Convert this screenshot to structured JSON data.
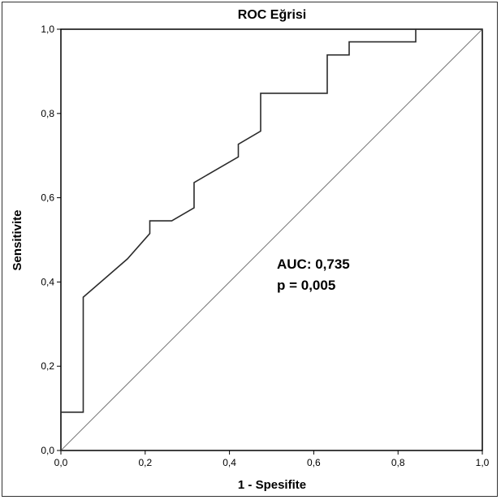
{
  "chart_data": {
    "type": "line",
    "title": "ROC Eğrisi",
    "xlabel": "1 - Spesifite",
    "ylabel": "Sensitivite",
    "xlim": [
      0,
      1
    ],
    "ylim": [
      0,
      1
    ],
    "xticks": [
      "0,0",
      "0,2",
      "0,4",
      "0,6",
      "0,8",
      "1,0"
    ],
    "yticks": [
      "0,0",
      "0,2",
      "0,4",
      "0,6",
      "0,8",
      "1,0"
    ],
    "grid": false,
    "series": [
      {
        "x": [
          0.0,
          0.0,
          0.053,
          0.053,
          0.158,
          0.211,
          0.211,
          0.263,
          0.316,
          0.316,
          0.421,
          0.421,
          0.474,
          0.474,
          0.632,
          0.632,
          0.684,
          0.684,
          0.842,
          0.842,
          1.0
        ],
        "y": [
          0.0,
          0.091,
          0.091,
          0.364,
          0.455,
          0.515,
          0.545,
          0.545,
          0.576,
          0.636,
          0.697,
          0.727,
          0.758,
          0.848,
          0.848,
          0.939,
          0.939,
          0.97,
          0.97,
          1.0,
          1.0
        ],
        "color": "#2b2b2b"
      }
    ],
    "reference_line": {
      "x": [
        0,
        1
      ],
      "y": [
        0,
        1
      ],
      "color": "#777777"
    },
    "annotations": [
      "AUC: 0,735",
      "p = 0,005"
    ]
  }
}
